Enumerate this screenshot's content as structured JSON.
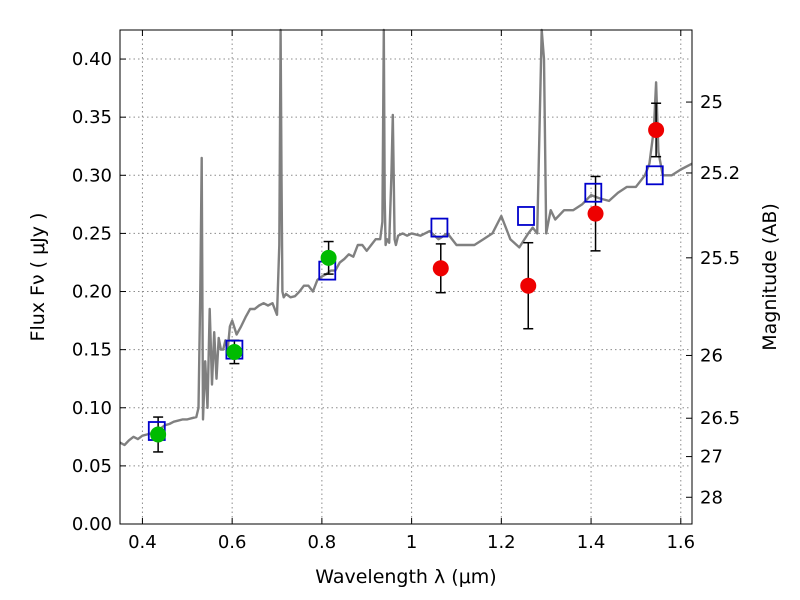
{
  "chart_data": {
    "type": "scatter",
    "xlabel": "Wavelength  λ (μm)",
    "ylabel": "Flux  Fν  ( μJy )",
    "y2label": "Magnitude (AB)",
    "xlim": [
      0.35,
      1.625
    ],
    "ylim": [
      0.0,
      0.425
    ],
    "grid": true,
    "x_ticks": [
      0.4,
      0.6,
      0.8,
      1.0,
      1.2,
      1.4,
      1.6
    ],
    "x_tick_labels": [
      "0.4",
      "0.6",
      "0.8",
      "1",
      "1.2",
      "1.4",
      "1.6"
    ],
    "y_ticks": [
      0.0,
      0.05,
      0.1,
      0.15,
      0.2,
      0.25,
      0.3,
      0.35,
      0.4
    ],
    "y_tick_labels": [
      "0.00",
      "0.05",
      "0.10",
      "0.15",
      "0.20",
      "0.25",
      "0.30",
      "0.35",
      "0.40"
    ],
    "y2_ticks": [
      {
        "label": "25",
        "flux": 0.363
      },
      {
        "label": "25.2",
        "flux": 0.302
      },
      {
        "label": "25.5",
        "flux": 0.229
      },
      {
        "label": "26",
        "flux": 0.145
      },
      {
        "label": "26.5",
        "flux": 0.091
      },
      {
        "label": "27",
        "flux": 0.058
      },
      {
        "label": "28",
        "flux": 0.023
      }
    ],
    "colors": {
      "spectrum": "#808080",
      "model_points": "#0000cc",
      "green_points": "#00bb00",
      "red_points": "#ee0000",
      "errorbars": "#000000",
      "grid": "#8c8c8c"
    },
    "series": [
      {
        "role": "model_spectrum",
        "x": [
          0.35,
          0.36,
          0.37,
          0.38,
          0.39,
          0.4,
          0.41,
          0.42,
          0.43,
          0.44,
          0.45,
          0.46,
          0.47,
          0.48,
          0.49,
          0.5,
          0.51,
          0.52,
          0.525,
          0.529,
          0.532,
          0.535,
          0.54,
          0.545,
          0.55,
          0.555,
          0.56,
          0.565,
          0.57,
          0.575,
          0.58,
          0.585,
          0.59,
          0.595,
          0.6,
          0.61,
          0.62,
          0.63,
          0.64,
          0.65,
          0.66,
          0.67,
          0.68,
          0.69,
          0.7,
          0.705,
          0.708,
          0.71,
          0.712,
          0.715,
          0.72,
          0.73,
          0.74,
          0.75,
          0.76,
          0.77,
          0.78,
          0.79,
          0.8,
          0.81,
          0.82,
          0.83,
          0.84,
          0.85,
          0.86,
          0.87,
          0.88,
          0.89,
          0.9,
          0.91,
          0.92,
          0.93,
          0.935,
          0.938,
          0.94,
          0.942,
          0.945,
          0.95,
          0.955,
          0.958,
          0.96,
          0.962,
          0.965,
          0.97,
          0.98,
          0.99,
          1.0,
          1.02,
          1.04,
          1.06,
          1.08,
          1.1,
          1.12,
          1.14,
          1.16,
          1.18,
          1.2,
          1.22,
          1.24,
          1.26,
          1.27,
          1.28,
          1.29,
          1.295,
          1.3,
          1.305,
          1.31,
          1.32,
          1.34,
          1.36,
          1.38,
          1.4,
          1.42,
          1.44,
          1.46,
          1.48,
          1.5,
          1.52,
          1.53,
          1.54,
          1.545,
          1.55,
          1.56,
          1.58,
          1.6,
          1.625
        ],
        "y": [
          0.07,
          0.068,
          0.072,
          0.075,
          0.073,
          0.076,
          0.077,
          0.078,
          0.08,
          0.082,
          0.085,
          0.086,
          0.088,
          0.089,
          0.09,
          0.09,
          0.091,
          0.092,
          0.1,
          0.2,
          0.315,
          0.09,
          0.14,
          0.1,
          0.185,
          0.12,
          0.165,
          0.125,
          0.16,
          0.15,
          0.15,
          0.158,
          0.15,
          0.17,
          0.175,
          0.163,
          0.17,
          0.178,
          0.185,
          0.185,
          0.188,
          0.19,
          0.188,
          0.19,
          0.18,
          0.24,
          0.425,
          0.3,
          0.2,
          0.195,
          0.198,
          0.195,
          0.196,
          0.2,
          0.205,
          0.205,
          0.2,
          0.21,
          0.213,
          0.215,
          0.218,
          0.218,
          0.225,
          0.228,
          0.232,
          0.23,
          0.24,
          0.24,
          0.235,
          0.24,
          0.245,
          0.245,
          0.26,
          0.425,
          0.28,
          0.24,
          0.245,
          0.242,
          0.3,
          0.352,
          0.3,
          0.245,
          0.24,
          0.248,
          0.25,
          0.248,
          0.25,
          0.248,
          0.252,
          0.245,
          0.25,
          0.24,
          0.24,
          0.24,
          0.245,
          0.25,
          0.265,
          0.245,
          0.238,
          0.25,
          0.255,
          0.25,
          0.425,
          0.4,
          0.25,
          0.26,
          0.27,
          0.262,
          0.27,
          0.27,
          0.275,
          0.283,
          0.28,
          0.278,
          0.285,
          0.29,
          0.29,
          0.3,
          0.31,
          0.34,
          0.38,
          0.32,
          0.3,
          0.3,
          0.305,
          0.31
        ]
      },
      {
        "role": "model_points",
        "shape": "open-square",
        "x": [
          0.432,
          0.605,
          0.812,
          1.062,
          1.255,
          1.405,
          1.542
        ],
        "y": [
          0.08,
          0.15,
          0.218,
          0.255,
          0.265,
          0.285,
          0.3
        ]
      },
      {
        "role": "observed_green",
        "shape": "filled-circle",
        "x": [
          0.435,
          0.605,
          0.815
        ],
        "y": [
          0.077,
          0.148,
          0.229
        ],
        "yerr": [
          0.015,
          0.01,
          0.014
        ]
      },
      {
        "role": "observed_red",
        "shape": "filled-circle",
        "x": [
          1.065,
          1.26,
          1.41,
          1.545
        ],
        "y": [
          0.22,
          0.205,
          0.267,
          0.339
        ],
        "yerr": [
          0.021,
          0.037,
          0.032,
          0.023
        ]
      }
    ]
  }
}
